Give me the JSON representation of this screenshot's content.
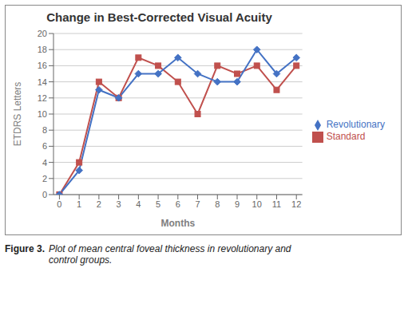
{
  "chart_data": {
    "type": "line",
    "title": "Change in Best-Corrected Visual Acuity",
    "xlabel": "Months",
    "ylabel": "ETDRS Letters",
    "x": [
      0,
      1,
      2,
      3,
      4,
      5,
      6,
      7,
      8,
      9,
      10,
      11,
      12
    ],
    "series": [
      {
        "name": "Standard",
        "color": "#C0504D",
        "marker": "square",
        "values": [
          0,
          4,
          14,
          12,
          17,
          16,
          14,
          10,
          16,
          15,
          16,
          13,
          16
        ]
      },
      {
        "name": "Revolutionary",
        "color": "#4472C4",
        "marker": "diamond",
        "values": [
          0,
          3,
          13,
          12,
          15,
          15,
          17,
          15,
          14,
          14,
          18,
          15,
          17
        ]
      }
    ],
    "xlim": [
      -0.3,
      12.3
    ],
    "xticks": [
      0,
      1,
      2,
      3,
      4,
      5,
      6,
      7,
      8,
      9,
      10,
      11,
      12
    ],
    "ylim": [
      0,
      20
    ],
    "yticks": [
      0,
      2,
      4,
      6,
      8,
      10,
      12,
      14,
      16,
      18,
      20
    ],
    "grid": "y",
    "legend": "right",
    "annotations": [
      "Figure 3.",
      "Plot of mean central foveal thickness in revolutionary and\ncontrol groups."
    ]
  }
}
